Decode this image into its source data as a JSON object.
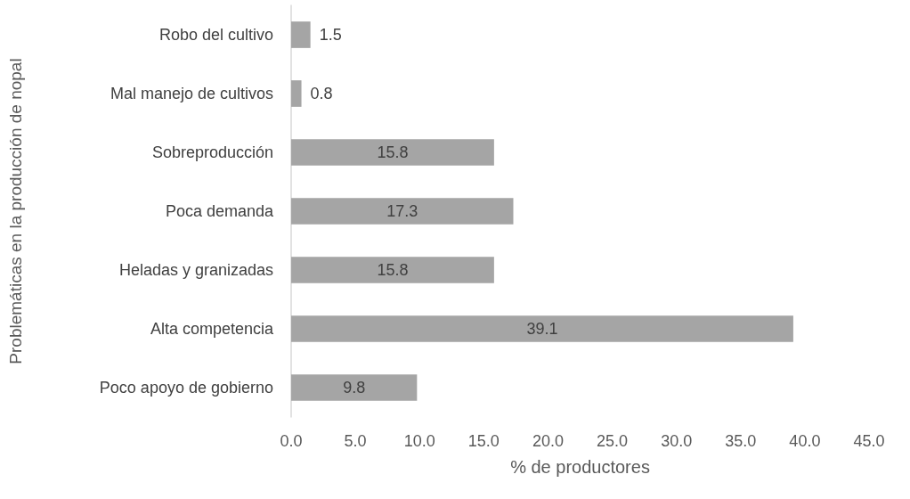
{
  "chart_data": {
    "type": "bar",
    "orientation": "horizontal",
    "xlabel": "% de productores",
    "ylabel": "Problemáticas en la producción de nopal",
    "categories": [
      "Robo del cultivo",
      "Mal manejo de cultivos",
      "Sobreproducción",
      "Poca demanda",
      "Heladas y granizadas",
      "Alta competencia",
      "Poco apoyo de gobierno"
    ],
    "values": [
      1.5,
      0.8,
      15.8,
      17.3,
      15.8,
      39.1,
      9.8
    ],
    "color": "#a5a5a5",
    "xlim": [
      0,
      45
    ],
    "xticks": [
      {
        "value": 0,
        "label": "0.0"
      },
      {
        "value": 5,
        "label": "5.0"
      },
      {
        "value": 10,
        "label": "10.0"
      },
      {
        "value": 15,
        "label": "15.0"
      },
      {
        "value": 20,
        "label": "20.0"
      },
      {
        "value": 25,
        "label": "25.0"
      },
      {
        "value": 30,
        "label": "30.0"
      },
      {
        "value": 35,
        "label": "35.0"
      },
      {
        "value": 40,
        "label": "40.0"
      },
      {
        "value": 45,
        "label": "45.0"
      }
    ],
    "data_labels": true
  }
}
